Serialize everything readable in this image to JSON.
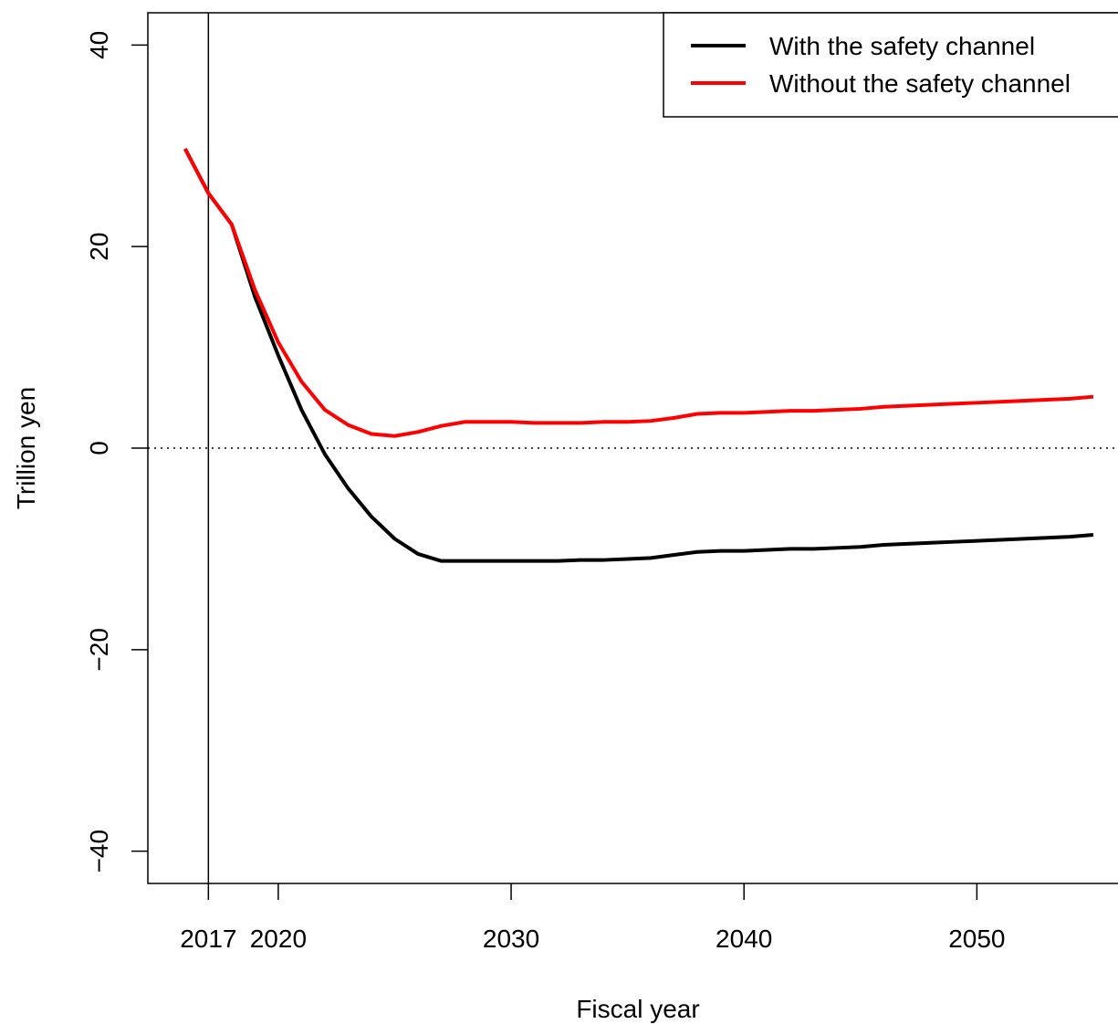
{
  "chart_data": {
    "type": "line",
    "x_label": "Fiscal year",
    "y_label": "Trillion yen",
    "x": [
      2016,
      2017,
      2018,
      2019,
      2020,
      2021,
      2022,
      2023,
      2024,
      2025,
      2026,
      2027,
      2028,
      2029,
      2030,
      2031,
      2032,
      2033,
      2034,
      2035,
      2036,
      2037,
      2038,
      2039,
      2040,
      2041,
      2042,
      2043,
      2044,
      2045,
      2046,
      2047,
      2048,
      2049,
      2050,
      2051,
      2052,
      2053,
      2054,
      2055
    ],
    "series": [
      {
        "name": "With the safety channel",
        "color": "#000000",
        "values": [
          29.7,
          25.3,
          22.2,
          15.0,
          9.2,
          3.8,
          -0.6,
          -4.0,
          -6.8,
          -9.0,
          -10.5,
          -11.2,
          -11.2,
          -11.2,
          -11.2,
          -11.2,
          -11.2,
          -11.1,
          -11.1,
          -11.0,
          -10.9,
          -10.6,
          -10.3,
          -10.2,
          -10.2,
          -10.1,
          -10.0,
          -10.0,
          -9.9,
          -9.8,
          -9.6,
          -9.5,
          -9.4,
          -9.3,
          -9.2,
          -9.1,
          -9.0,
          -8.9,
          -8.8,
          -8.6
        ]
      },
      {
        "name": "Without the safety channel",
        "color": "#ff0000",
        "values": [
          29.7,
          25.3,
          22.2,
          15.7,
          10.5,
          6.6,
          3.8,
          2.3,
          1.4,
          1.2,
          1.6,
          2.2,
          2.6,
          2.6,
          2.6,
          2.5,
          2.5,
          2.5,
          2.6,
          2.6,
          2.7,
          3.0,
          3.4,
          3.5,
          3.5,
          3.6,
          3.7,
          3.7,
          3.8,
          3.9,
          4.1,
          4.2,
          4.3,
          4.4,
          4.5,
          4.6,
          4.7,
          4.8,
          4.9,
          5.1
        ]
      }
    ],
    "xlim": [
      2014.4,
      2056.1
    ],
    "ylim": [
      -43.2,
      43.2
    ],
    "xticks": [
      2017,
      2020,
      2030,
      2040,
      2050
    ],
    "yticks": [
      {
        "value": -40,
        "label": "−40"
      },
      {
        "value": -20,
        "label": "−20"
      },
      0,
      20,
      40
    ],
    "vline": 2017,
    "hline": 0,
    "legend": "top-right"
  }
}
